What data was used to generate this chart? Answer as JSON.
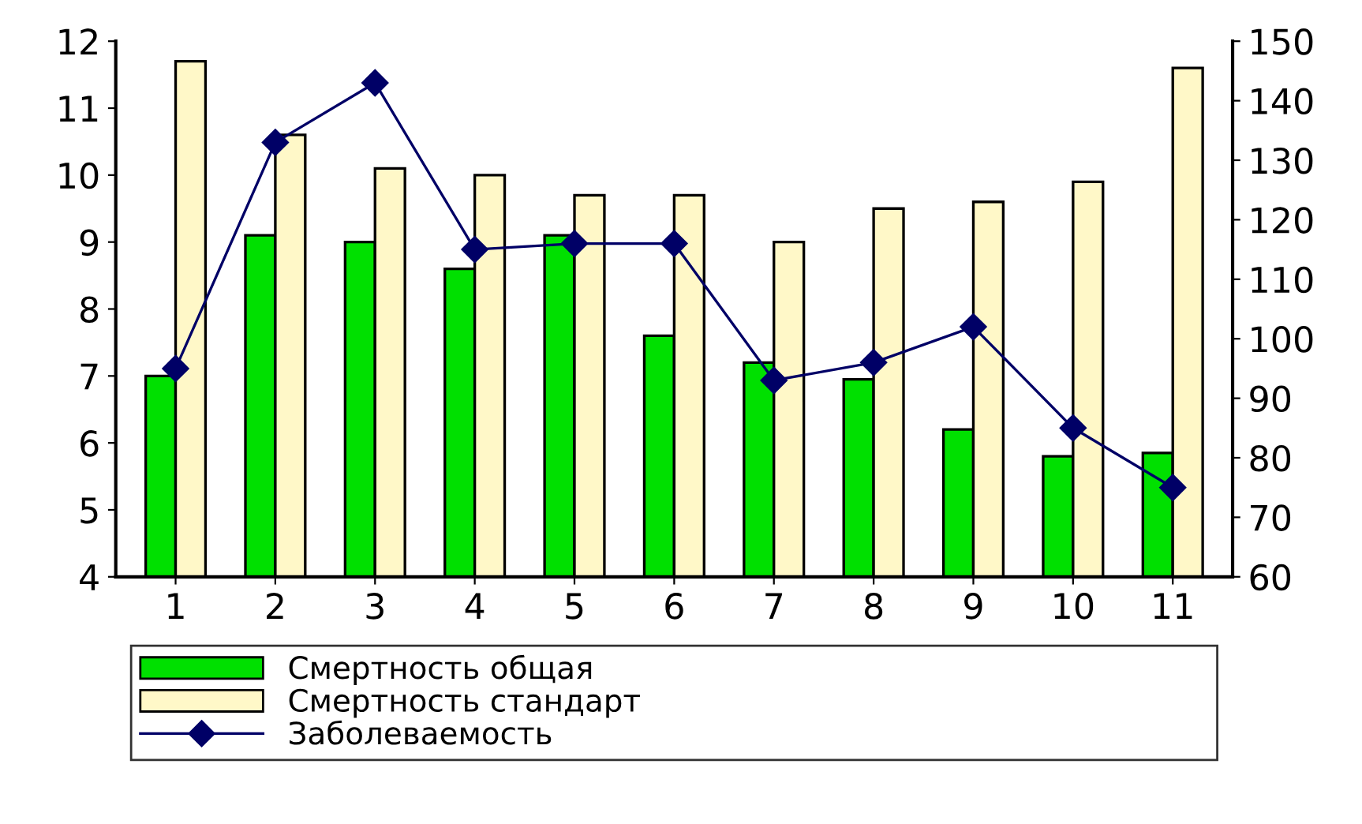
{
  "chart_data": {
    "type": "bar",
    "categories": [
      "1",
      "2",
      "3",
      "4",
      "5",
      "6",
      "7",
      "8",
      "9",
      "10",
      "11"
    ],
    "series": [
      {
        "name": "Смертность общая",
        "color": "#00e000",
        "values": [
          7.0,
          9.1,
          9.0,
          8.6,
          9.1,
          7.6,
          7.2,
          6.95,
          6.2,
          5.8,
          5.85
        ]
      },
      {
        "name": "Смертность стандарт",
        "color": "#fff8c8",
        "values": [
          11.7,
          10.6,
          10.1,
          10.0,
          9.7,
          9.7,
          9.0,
          9.5,
          9.6,
          9.9,
          11.6
        ]
      },
      {
        "name": "Заболеваемость",
        "type": "line",
        "axis": "y2",
        "color": "#000066",
        "marker": "diamond",
        "values": [
          95,
          133,
          143,
          115,
          116,
          116,
          93,
          96,
          102,
          85,
          75
        ]
      }
    ],
    "ylim": [
      4,
      12
    ],
    "yticks": [
      4,
      5,
      6,
      7,
      8,
      9,
      10,
      11,
      12
    ],
    "y2lim": [
      60,
      150
    ],
    "y2ticks": [
      60,
      70,
      80,
      90,
      100,
      110,
      120,
      130,
      140,
      150
    ],
    "grid": false,
    "legend": "bottom"
  }
}
